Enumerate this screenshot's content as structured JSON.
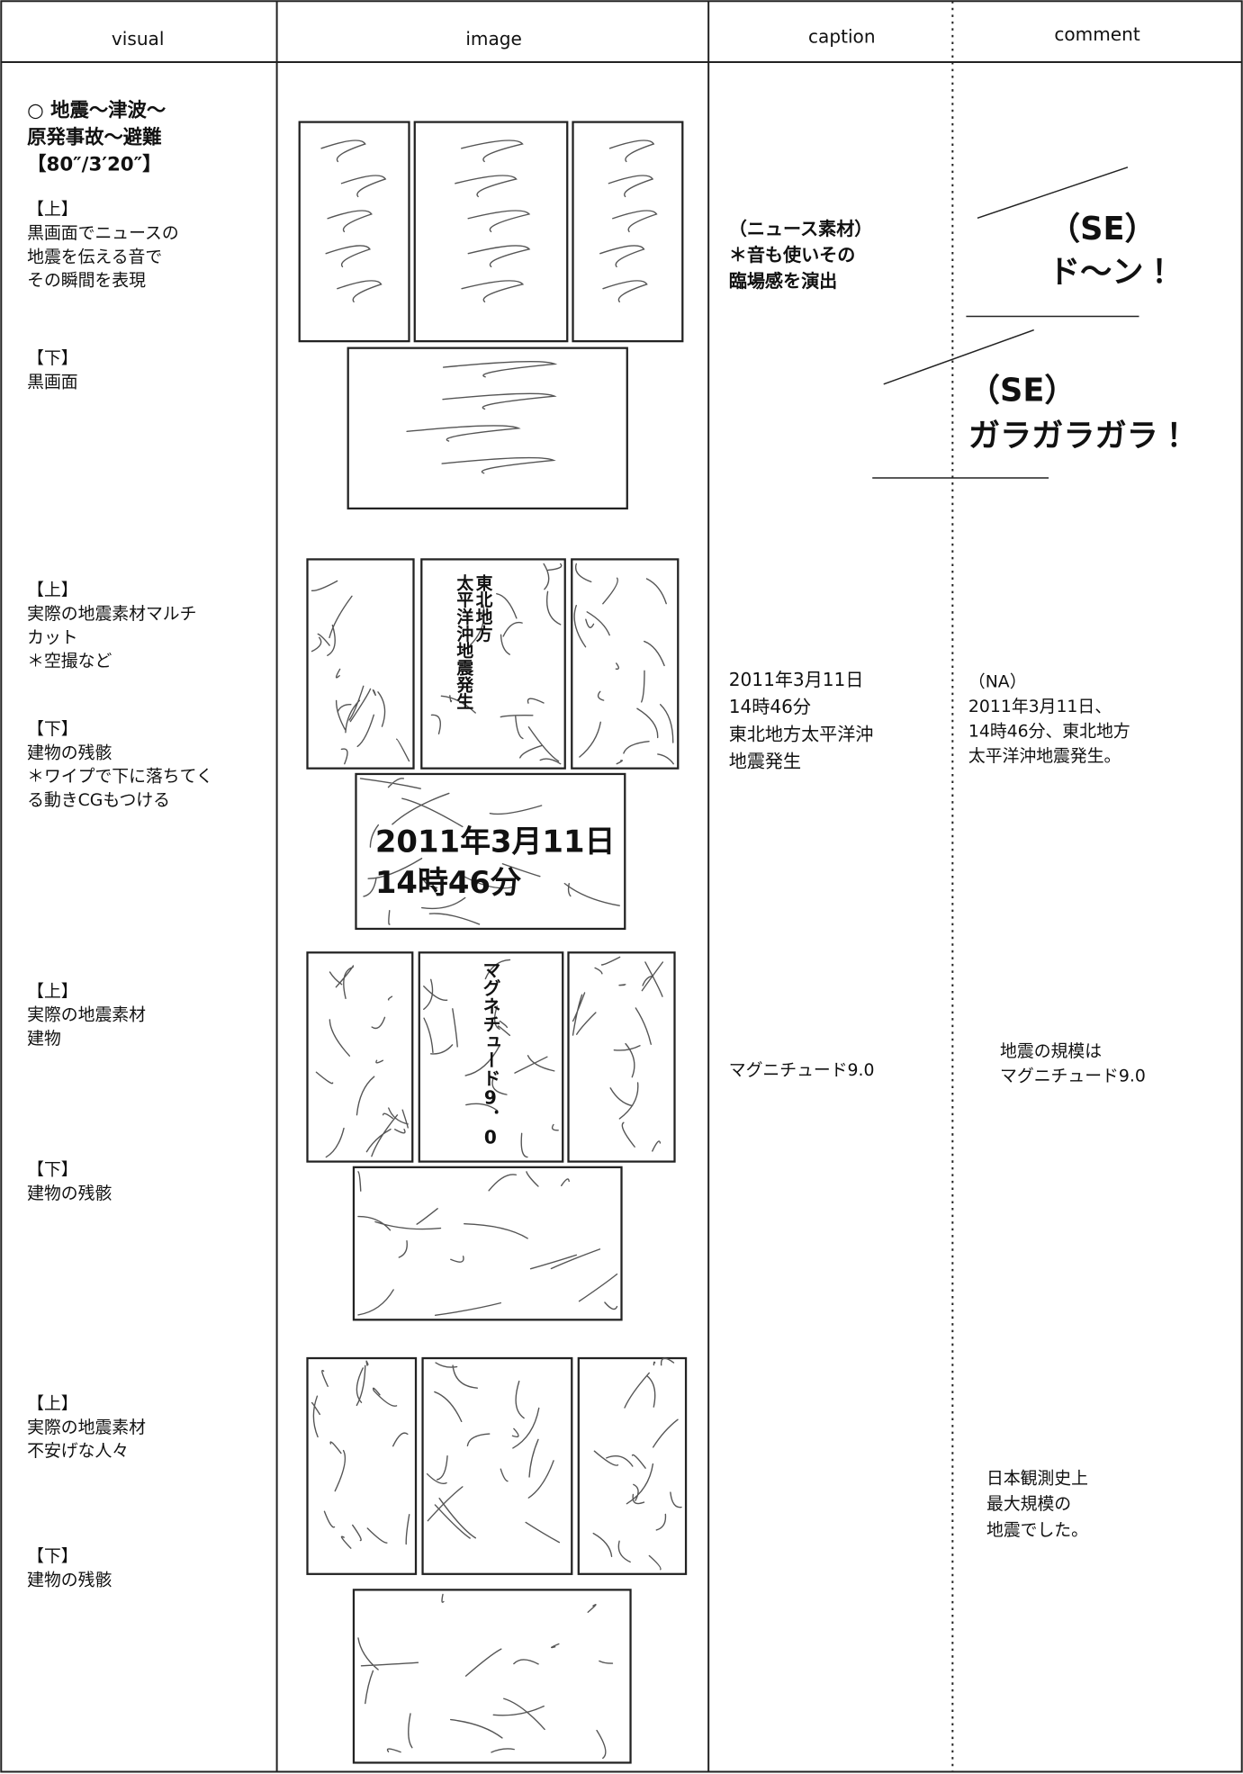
{
  "header": {
    "visual": "visual",
    "image": "image",
    "caption": "caption",
    "comment": "comment"
  },
  "rows": [
    {
      "visual": [
        [
          "○ 地震～津波～",
          "原発事故～避難",
          "【80″/3′20″】"
        ],
        [
          "【上】",
          "黒画面でニュースの",
          "地震を伝える音で",
          "その瞬間を表現"
        ],
        [
          "【下】",
          "黒画面"
        ]
      ],
      "caption": [
        "（ニュース素材）",
        "＊音も使いその",
        "臨場感を演出"
      ],
      "comment": [
        [
          "（SE）",
          "ド～ン！"
        ],
        [
          "（SE）",
          "ガラガラガラ！"
        ]
      ]
    },
    {
      "visual": [
        [
          "【上】",
          "実際の地震素材マルチ",
          "カット",
          "＊空撮など"
        ],
        [
          "【下】",
          "建物の残骸",
          "＊ワイプで下に落ちてく",
          "る動きCGもつける"
        ]
      ],
      "image_text": {
        "top": [
          "東北地方",
          "太平洋沖地震発生"
        ],
        "bottom": [
          "2011年3月11日",
          "14時46分"
        ]
      },
      "caption": [
        "2011年3月11日",
        "14時46分",
        "東北地方太平洋沖",
        "地震発生"
      ],
      "comment": [
        [
          "（NA）",
          "2011年3月11日、",
          "14時46分、東北地方",
          "太平洋沖地震発生。"
        ]
      ]
    },
    {
      "visual": [
        [
          "【上】",
          "実際の地震素材",
          "建物"
        ],
        [
          "【下】",
          "建物の残骸"
        ]
      ],
      "image_text": {
        "top": [
          "マグネチュード9．0"
        ]
      },
      "caption": [
        "マグニチュード9.0"
      ],
      "comment": [
        [
          "地震の規模は",
          "マグニチュード9.0"
        ]
      ]
    },
    {
      "visual": [
        [
          "【上】",
          "実際の地震素材",
          "不安げな人々"
        ],
        [
          "【下】",
          "建物の残骸"
        ]
      ],
      "comment": [
        [
          "日本観測史上",
          "最大規模の",
          "地震でした。"
        ]
      ]
    }
  ]
}
